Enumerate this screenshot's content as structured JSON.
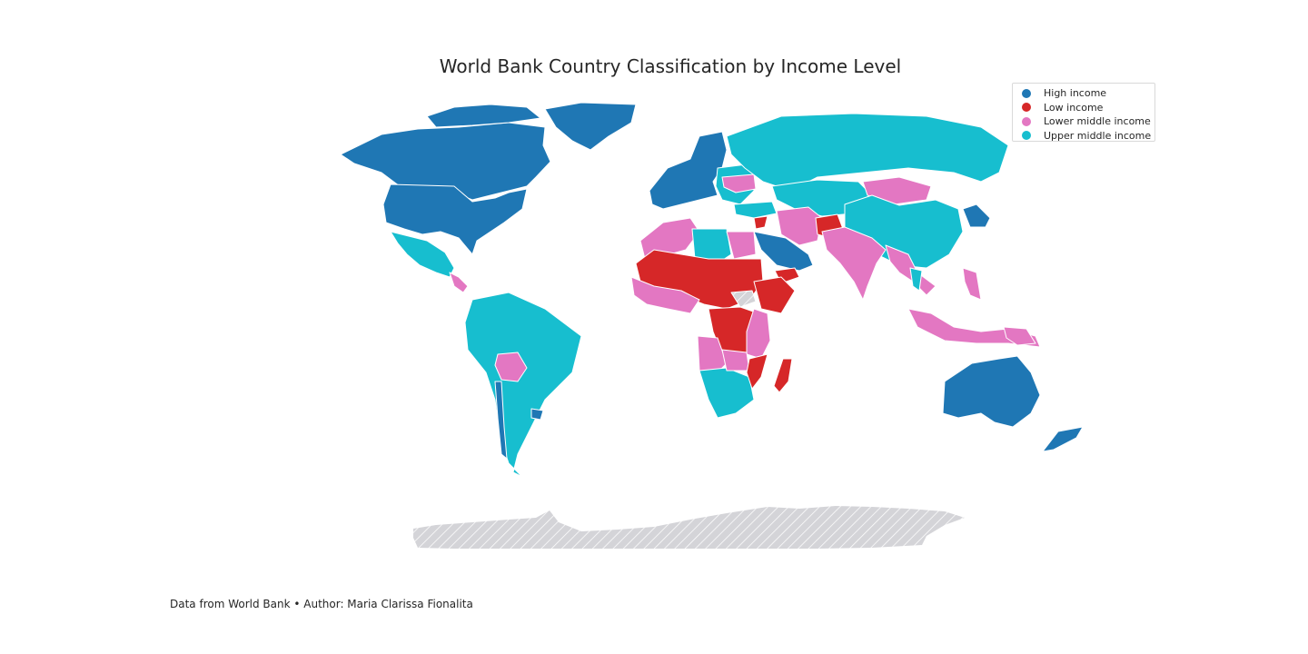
{
  "title": "World Bank Country Classification by Income Level",
  "credit": "Data from World Bank • Author: Maria Clarissa Fionalita",
  "colors": {
    "high": "#1f77b4",
    "low": "#d62728",
    "lower_middle": "#e377c2",
    "upper_middle": "#17becf",
    "no_data": "#cfcfd4",
    "border": "#ffffff"
  },
  "legend": [
    {
      "label": "High income",
      "color": "#1f77b4"
    },
    {
      "label": "Low income",
      "color": "#d62728"
    },
    {
      "label": "Lower middle income",
      "color": "#e377c2"
    },
    {
      "label": "Upper middle income",
      "color": "#17becf"
    }
  ]
}
